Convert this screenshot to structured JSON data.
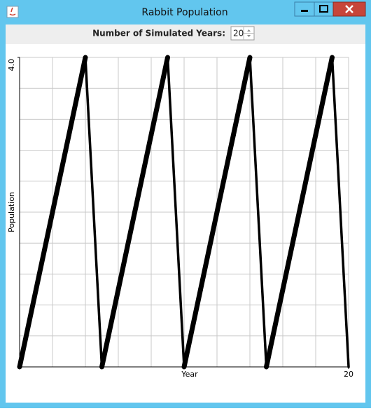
{
  "window": {
    "title": "Rabbit Population"
  },
  "controls": {
    "years_label": "Number of Simulated Years:",
    "years_value": 20
  },
  "chart_data": {
    "type": "line",
    "xlabel": "Year",
    "ylabel": "Population",
    "x": [
      0,
      1,
      2,
      3,
      4,
      5,
      6,
      7,
      8,
      9,
      10,
      11,
      12,
      13,
      14,
      15,
      16,
      17,
      18,
      19,
      20
    ],
    "values": [
      0,
      1,
      2,
      3,
      4,
      0,
      1,
      2,
      3,
      4,
      0,
      1,
      2,
      3,
      4,
      0,
      1,
      2,
      3,
      4,
      0
    ],
    "color": "#000000",
    "xlim": [
      0,
      20
    ],
    "ylim": [
      0,
      4
    ],
    "xticks": [
      20
    ],
    "yticks": [
      {
        "value": 4,
        "label": "4.0"
      }
    ],
    "xgrid": [
      2,
      4,
      6,
      8,
      10,
      12,
      14,
      16,
      18,
      20
    ],
    "ygrid": [
      0.4,
      0.8,
      1.2,
      1.6,
      2,
      2.4,
      2.8,
      3.2,
      3.6,
      4
    ],
    "grid": true
  }
}
